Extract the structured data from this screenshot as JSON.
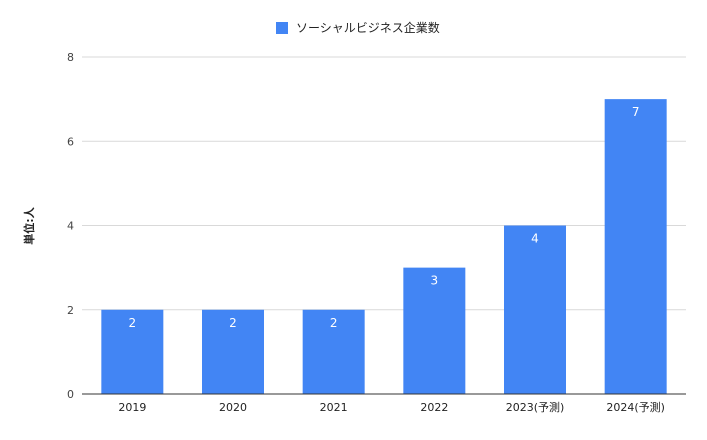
{
  "chart_data": {
    "type": "bar",
    "categories": [
      "2019",
      "2020",
      "2021",
      "2022",
      "2023(予測)",
      "2024(予測)"
    ],
    "series": [
      {
        "name": "ソーシャルビジネス企業数",
        "values": [
          2,
          2,
          2,
          3,
          4,
          7
        ],
        "color": "#4285f4"
      }
    ],
    "title": "",
    "xlabel": "",
    "ylabel": "単位:人",
    "ylim": [
      0,
      8
    ],
    "yticks": [
      0,
      2,
      4,
      6,
      8
    ],
    "grid": true,
    "legend_position": "top-center",
    "data_labels": true
  }
}
